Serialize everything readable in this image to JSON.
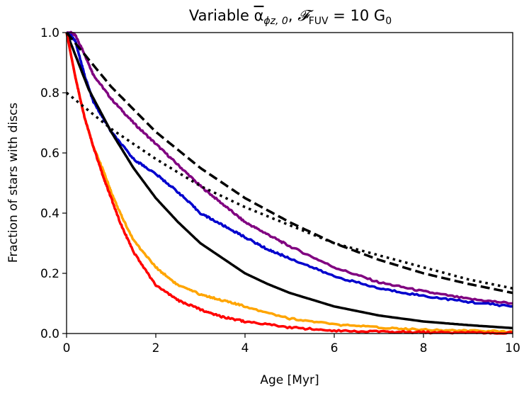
{
  "chart_data": {
    "type": "line",
    "title": "Variable α̅ϕz,0, 𝓕FUV = 10 G0",
    "title_parts": {
      "lead": "Variable ",
      "alpha": "α",
      "alpha_sub": "ϕz, 0",
      "comma": ", ",
      "flux": "𝓕",
      "flux_sub": "FUV",
      "equals": " = 10 G",
      "g_sub": "0"
    },
    "xlabel": "Age [Myr]",
    "ylabel": "Fraction of stars with discs",
    "xlim": [
      0,
      10
    ],
    "ylim": [
      0,
      1.0
    ],
    "x_ticks": [
      0,
      2,
      4,
      6,
      8,
      10
    ],
    "x_tick_labels": [
      "0",
      "2",
      "4",
      "6",
      "8",
      "10"
    ],
    "y_ticks": [
      0.0,
      0.2,
      0.4,
      0.6,
      0.8,
      1.0
    ],
    "y_tick_labels": [
      "0.0",
      "0.2",
      "0.4",
      "0.6",
      "0.8",
      "1.0"
    ],
    "grid": false,
    "series": [
      {
        "name": "purple",
        "color": "#800080",
        "style": "solid",
        "x": [
          0,
          0.1,
          0.2,
          0.4,
          0.6,
          1.0,
          1.5,
          2.0,
          2.5,
          3.0,
          3.5,
          4.0,
          4.5,
          5.0,
          6.0,
          7.0,
          8.0,
          9.0,
          10.0
        ],
        "y": [
          1.0,
          1.0,
          0.99,
          0.93,
          0.86,
          0.78,
          0.7,
          0.63,
          0.56,
          0.49,
          0.43,
          0.37,
          0.33,
          0.29,
          0.22,
          0.17,
          0.14,
          0.115,
          0.1
        ]
      },
      {
        "name": "blue",
        "color": "#0000cd",
        "style": "solid",
        "x": [
          0,
          0.1,
          0.2,
          0.4,
          0.6,
          1.0,
          1.5,
          2.0,
          2.5,
          3.0,
          3.5,
          4.0,
          4.5,
          5.0,
          6.0,
          7.0,
          8.0,
          9.0,
          10.0
        ],
        "y": [
          1.0,
          0.99,
          0.97,
          0.86,
          0.77,
          0.67,
          0.58,
          0.53,
          0.47,
          0.4,
          0.36,
          0.32,
          0.28,
          0.25,
          0.19,
          0.15,
          0.125,
          0.105,
          0.09
        ]
      },
      {
        "name": "black",
        "color": "#000000",
        "style": "solid",
        "x": [
          0,
          0.5,
          1.0,
          1.5,
          2.0,
          2.5,
          3.0,
          3.5,
          4.0,
          4.5,
          5.0,
          6.0,
          7.0,
          8.0,
          9.0,
          10.0
        ],
        "y": [
          1.0,
          0.81,
          0.67,
          0.55,
          0.45,
          0.37,
          0.3,
          0.25,
          0.2,
          0.165,
          0.135,
          0.09,
          0.06,
          0.04,
          0.028,
          0.018
        ]
      },
      {
        "name": "orange",
        "color": "#ffa500",
        "style": "solid",
        "x": [
          0,
          0.2,
          0.4,
          0.6,
          0.8,
          1.0,
          1.2,
          1.5,
          2.0,
          2.5,
          3.0,
          3.5,
          4.0,
          5.0,
          6.0,
          7.0,
          8.0,
          9.0,
          10.0
        ],
        "y": [
          1.0,
          0.85,
          0.72,
          0.62,
          0.55,
          0.47,
          0.4,
          0.31,
          0.22,
          0.16,
          0.13,
          0.11,
          0.09,
          0.05,
          0.03,
          0.02,
          0.013,
          0.009,
          0.006
        ]
      },
      {
        "name": "red",
        "color": "#ff0000",
        "style": "solid",
        "x": [
          0,
          0.2,
          0.4,
          0.6,
          0.8,
          1.0,
          1.2,
          1.5,
          2.0,
          2.5,
          3.0,
          3.5,
          4.0,
          5.0,
          6.0,
          7.0,
          8.0,
          9.0,
          10.0
        ],
        "y": [
          1.0,
          0.85,
          0.72,
          0.62,
          0.53,
          0.45,
          0.37,
          0.27,
          0.16,
          0.11,
          0.08,
          0.055,
          0.04,
          0.02,
          0.01,
          0.006,
          0.004,
          0.003,
          0.002
        ]
      },
      {
        "name": "dashed",
        "color": "#000000",
        "style": "dashed",
        "x": [
          0,
          1,
          2,
          3,
          4,
          5,
          6,
          7,
          8,
          9,
          10
        ],
        "y": [
          1.0,
          0.82,
          0.67,
          0.55,
          0.45,
          0.37,
          0.3,
          0.245,
          0.2,
          0.165,
          0.135
        ]
      },
      {
        "name": "dotted",
        "color": "#000000",
        "style": "dotted",
        "x": [
          0,
          1,
          2,
          3,
          4,
          5,
          6,
          7,
          8,
          9,
          10
        ],
        "y": [
          0.8,
          0.68,
          0.58,
          0.49,
          0.42,
          0.36,
          0.3,
          0.26,
          0.22,
          0.18,
          0.15
        ]
      }
    ]
  }
}
